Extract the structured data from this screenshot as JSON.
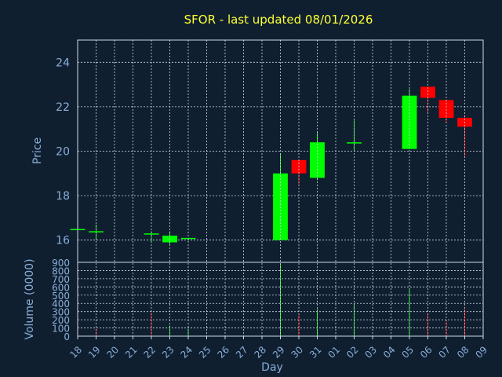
{
  "title": "SFOR - last updated 08/01/2026",
  "chart_data": [
    {
      "type": "candlestick",
      "ylabel": "Price",
      "ylim": [
        15,
        25
      ],
      "yticks": [
        16,
        18,
        20,
        22,
        24
      ],
      "up_color": "#00ff00",
      "down_color": "#ff0000",
      "grid": true,
      "x": [
        "18",
        "19",
        "20",
        "21",
        "22",
        "23",
        "24",
        "25",
        "26",
        "27",
        "28",
        "29",
        "30",
        "31",
        "01",
        "02",
        "03",
        "04",
        "05",
        "06",
        "07",
        "08",
        "09"
      ],
      "candles": [
        {
          "day": "18",
          "open": 16.5,
          "high": 16.5,
          "low": 16.5,
          "close": 16.5
        },
        {
          "day": "19",
          "open": 16.4,
          "high": 16.7,
          "low": 16.0,
          "close": 16.4
        },
        {
          "day": "22",
          "open": 16.3,
          "high": 16.4,
          "low": 15.9,
          "close": 16.3
        },
        {
          "day": "23",
          "open": 15.9,
          "high": 16.4,
          "low": 15.8,
          "close": 16.2
        },
        {
          "day": "24",
          "open": 16.05,
          "high": 16.1,
          "low": 16.0,
          "close": 16.1
        },
        {
          "day": "29",
          "open": 16.0,
          "high": 19.9,
          "low": 16.0,
          "close": 19.0
        },
        {
          "day": "30",
          "open": 19.6,
          "high": 19.6,
          "low": 18.5,
          "close": 19.0
        },
        {
          "day": "31",
          "open": 18.8,
          "high": 20.9,
          "low": 18.7,
          "close": 20.4
        },
        {
          "day": "02",
          "open": 20.35,
          "high": 21.4,
          "low": 20.0,
          "close": 20.4
        },
        {
          "day": "05",
          "open": 20.1,
          "high": 22.8,
          "low": 20.1,
          "close": 22.5
        },
        {
          "day": "06",
          "open": 22.9,
          "high": 22.9,
          "low": 21.7,
          "close": 22.4
        },
        {
          "day": "07",
          "open": 22.3,
          "high": 22.3,
          "low": 21.3,
          "close": 21.5
        },
        {
          "day": "08",
          "open": 21.5,
          "high": 21.6,
          "low": 19.7,
          "close": 21.1
        }
      ]
    },
    {
      "type": "bar",
      "ylabel": "Volume (0000)",
      "xlabel": "Day",
      "ylim": [
        0,
        900
      ],
      "yticks": [
        0,
        100,
        200,
        300,
        400,
        500,
        600,
        700,
        800,
        900
      ],
      "grid": true,
      "bars": [
        {
          "day": "18",
          "value": 0,
          "color": "#00ff00"
        },
        {
          "day": "19",
          "value": 90,
          "color": "#ff0000"
        },
        {
          "day": "22",
          "value": 290,
          "color": "#ff0000"
        },
        {
          "day": "23",
          "value": 130,
          "color": "#00ff00"
        },
        {
          "day": "24",
          "value": 90,
          "color": "#00ff00"
        },
        {
          "day": "29",
          "value": 880,
          "color": "#00ff00"
        },
        {
          "day": "30",
          "value": 260,
          "color": "#ff0000"
        },
        {
          "day": "31",
          "value": 330,
          "color": "#00ff00"
        },
        {
          "day": "02",
          "value": 390,
          "color": "#00ff00"
        },
        {
          "day": "05",
          "value": 580,
          "color": "#00ff00"
        },
        {
          "day": "06",
          "value": 280,
          "color": "#ff0000"
        },
        {
          "day": "07",
          "value": 180,
          "color": "#ff0000"
        },
        {
          "day": "08",
          "value": 330,
          "color": "#ff0000"
        }
      ]
    }
  ]
}
